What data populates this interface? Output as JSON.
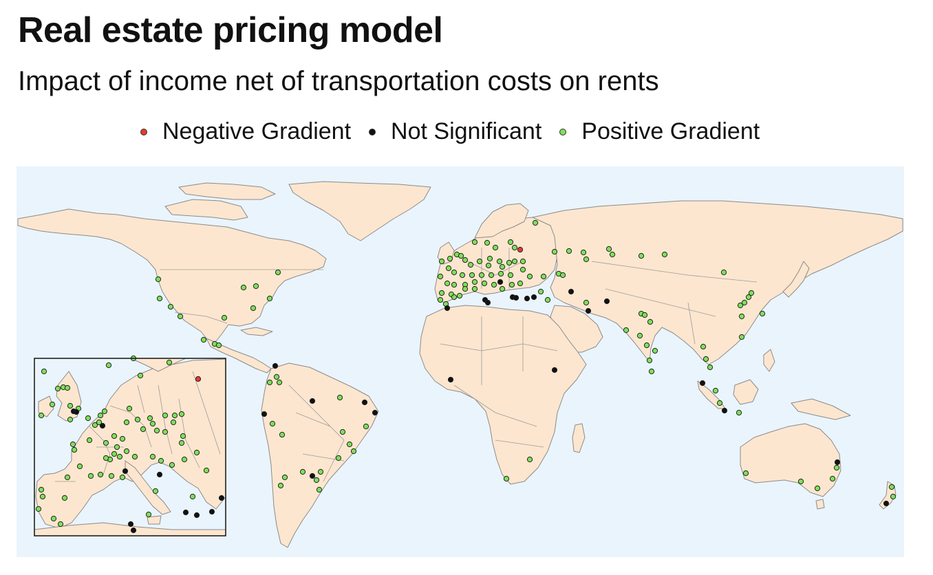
{
  "title": "Real estate pricing model",
  "subtitle": "Impact of income net of transportation costs on rents",
  "legend": [
    {
      "label": "Negative Gradient",
      "color": "#e23b2f",
      "icon": "red-dot-icon"
    },
    {
      "label": "Not Significant",
      "color": "#111111",
      "icon": "black-dot-icon"
    },
    {
      "label": "Positive Gradient",
      "color": "#7de05a",
      "icon": "green-dot-icon"
    }
  ],
  "colors": {
    "ocean": "#eaf4fd",
    "land": "#fde6cf",
    "border": "#8a8a8a"
  },
  "points": {
    "main": {
      "negative": [
        [
          756,
          363
        ]
      ],
      "not_significant": [
        [
          705,
          436
        ],
        [
          709,
          440
        ],
        [
          745,
          432
        ],
        [
          750,
          433
        ],
        [
          766,
          434
        ],
        [
          776,
          432
        ],
        [
          830,
          424
        ],
        [
          882,
          438
        ],
        [
          855,
          452
        ],
        [
          650,
          448
        ],
        [
          655,
          552
        ],
        [
          806,
          538
        ],
        [
          727,
          410
        ],
        [
          400,
          532
        ],
        [
          384,
          602
        ],
        [
          454,
          583
        ],
        [
          530,
          585
        ],
        [
          545,
          600
        ],
        [
          454,
          692
        ],
        [
          1021,
          557
        ],
        [
          1053,
          597
        ],
        [
          1217,
          672
        ],
        [
          1288,
          732
        ]
      ],
      "positive": [
        [
          690,
          352
        ],
        [
          708,
          353
        ],
        [
          742,
          352
        ],
        [
          778,
          324
        ],
        [
          806,
          366
        ],
        [
          827,
          365
        ],
        [
          848,
          367
        ],
        [
          852,
          377
        ],
        [
          885,
          362
        ],
        [
          890,
          370
        ],
        [
          932,
          372
        ],
        [
          966,
          370
        ],
        [
          1052,
          396
        ],
        [
          664,
          370
        ],
        [
          676,
          378
        ],
        [
          684,
          385
        ],
        [
          697,
          380
        ],
        [
          712,
          376
        ],
        [
          726,
          380
        ],
        [
          740,
          382
        ],
        [
          748,
          380
        ],
        [
          642,
          380
        ],
        [
          652,
          390
        ],
        [
          660,
          396
        ],
        [
          672,
          400
        ],
        [
          686,
          400
        ],
        [
          700,
          400
        ],
        [
          714,
          400
        ],
        [
          728,
          398
        ],
        [
          742,
          400
        ],
        [
          760,
          392
        ],
        [
          770,
          402
        ],
        [
          790,
          402
        ],
        [
          640,
          402
        ],
        [
          650,
          412
        ],
        [
          660,
          414
        ],
        [
          676,
          414
        ],
        [
          690,
          410
        ],
        [
          704,
          412
        ],
        [
          718,
          414
        ],
        [
          730,
          420
        ],
        [
          744,
          414
        ],
        [
          756,
          412
        ],
        [
          642,
          426
        ],
        [
          656,
          428
        ],
        [
          668,
          430
        ],
        [
          676,
          420
        ],
        [
          690,
          420
        ],
        [
          640,
          436
        ],
        [
          648,
          442
        ],
        [
          660,
          432
        ],
        [
          730,
          388
        ],
        [
          710,
          386
        ],
        [
          654,
          376
        ],
        [
          670,
          372
        ],
        [
          720,
          360
        ],
        [
          748,
          360
        ],
        [
          760,
          380
        ],
        [
          786,
          424
        ],
        [
          796,
          436
        ],
        [
          812,
          398
        ],
        [
          818,
          400
        ],
        [
          852,
          440
        ],
        [
          932,
          456
        ],
        [
          937,
          458
        ],
        [
          945,
          468
        ],
        [
          910,
          480
        ],
        [
          930,
          488
        ],
        [
          940,
          502
        ],
        [
          952,
          510
        ],
        [
          944,
          524
        ],
        [
          947,
          540
        ],
        [
          1076,
          444
        ],
        [
          1082,
          440
        ],
        [
          1088,
          432
        ],
        [
          1092,
          426
        ],
        [
          1078,
          460
        ],
        [
          1108,
          456
        ],
        [
          1078,
          490
        ],
        [
          1022,
          504
        ],
        [
          1026,
          522
        ],
        [
          1032,
          534
        ],
        [
          1040,
          568
        ],
        [
          1046,
          586
        ],
        [
          1074,
          600
        ],
        [
          230,
          406
        ],
        [
          232,
          434
        ],
        [
          248,
          446
        ],
        [
          262,
          460
        ],
        [
          354,
          418
        ],
        [
          372,
          416
        ],
        [
          404,
          396
        ],
        [
          392,
          434
        ],
        [
          368,
          448
        ],
        [
          326,
          462
        ],
        [
          296,
          494
        ],
        [
          312,
          500
        ],
        [
          318,
          502
        ],
        [
          402,
          548
        ],
        [
          406,
          556
        ],
        [
          392,
          556
        ],
        [
          396,
          616
        ],
        [
          410,
          632
        ],
        [
          494,
          578
        ],
        [
          498,
          628
        ],
        [
          508,
          646
        ],
        [
          514,
          656
        ],
        [
          492,
          666
        ],
        [
          466,
          686
        ],
        [
          460,
          698
        ],
        [
          440,
          686
        ],
        [
          414,
          694
        ],
        [
          408,
          706
        ],
        [
          464,
          712
        ],
        [
          532,
          620
        ],
        [
          770,
          668
        ],
        [
          736,
          696
        ],
        [
          1084,
          688
        ],
        [
          1164,
          700
        ],
        [
          1188,
          710
        ],
        [
          1210,
          696
        ],
        [
          1216,
          680
        ],
        [
          1296,
          708
        ],
        [
          1298,
          722
        ]
      ]
    },
    "inset": {
      "negative": [
        [
          288,
          551
        ]
      ],
      "not_significant": [
        [
          107,
          598
        ],
        [
          111,
          599
        ],
        [
          149,
          619
        ],
        [
          182,
          685
        ],
        [
          232,
          690
        ],
        [
          270,
          745
        ],
        [
          286,
          749
        ],
        [
          308,
          744
        ],
        [
          322,
          724
        ],
        [
          190,
          762
        ],
        [
          194,
          771
        ]
      ],
      "positive": [
        [
          158,
          531
        ],
        [
          194,
          521
        ],
        [
          246,
          527
        ],
        [
          204,
          546
        ],
        [
          64,
          540
        ],
        [
          84,
          565
        ],
        [
          92,
          563
        ],
        [
          98,
          564
        ],
        [
          76,
          588
        ],
        [
          60,
          604
        ],
        [
          102,
          590
        ],
        [
          114,
          594
        ],
        [
          102,
          610
        ],
        [
          128,
          608
        ],
        [
          138,
          618
        ],
        [
          146,
          604
        ],
        [
          152,
          598
        ],
        [
          144,
          614
        ],
        [
          130,
          640
        ],
        [
          154,
          644
        ],
        [
          166,
          634
        ],
        [
          170,
          650
        ],
        [
          178,
          638
        ],
        [
          184,
          614
        ],
        [
          188,
          594
        ],
        [
          200,
          610
        ],
        [
          208,
          624
        ],
        [
          218,
          608
        ],
        [
          222,
          616
        ],
        [
          228,
          626
        ],
        [
          240,
          604
        ],
        [
          254,
          604
        ],
        [
          264,
          602
        ],
        [
          252,
          614
        ],
        [
          240,
          628
        ],
        [
          266,
          634
        ],
        [
          264,
          644
        ],
        [
          286,
          658
        ],
        [
          106,
          646
        ],
        [
          108,
          654
        ],
        [
          116,
          678
        ],
        [
          132,
          692
        ],
        [
          146,
          690
        ],
        [
          162,
          692
        ],
        [
          178,
          694
        ],
        [
          184,
          656
        ],
        [
          196,
          664
        ],
        [
          222,
          664
        ],
        [
          234,
          670
        ],
        [
          250,
          676
        ],
        [
          268,
          668
        ],
        [
          300,
          684
        ],
        [
          226,
          714
        ],
        [
          280,
          722
        ],
        [
          216,
          748
        ],
        [
          60,
          712
        ],
        [
          62,
          722
        ],
        [
          56,
          740
        ],
        [
          94,
          724
        ],
        [
          78,
          754
        ],
        [
          88,
          762
        ],
        [
          174,
          664
        ],
        [
          160,
          668
        ],
        [
          98,
          694
        ],
        [
          166,
          660
        ],
        [
          154,
          666
        ]
      ]
    }
  }
}
